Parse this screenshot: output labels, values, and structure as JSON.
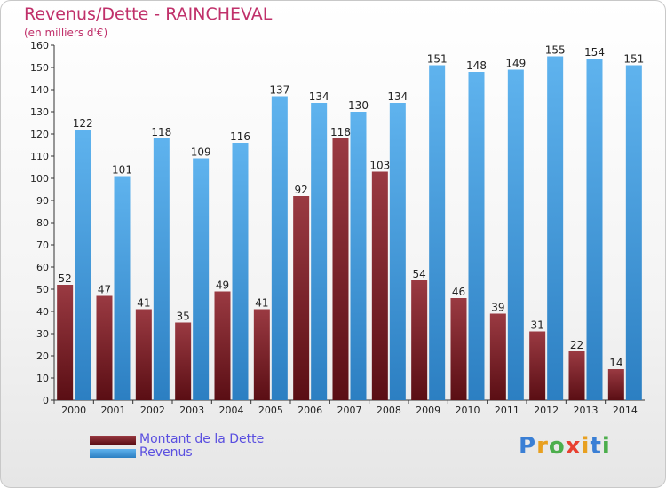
{
  "chart_data": {
    "type": "bar",
    "title": "Revenus/Dette - RAINCHEVAL",
    "subtitle": "(en milliers d'€)",
    "categories": [
      "2000",
      "2001",
      "2002",
      "2003",
      "2004",
      "2005",
      "2006",
      "2007",
      "2008",
      "2009",
      "2010",
      "2011",
      "2012",
      "2013",
      "2014"
    ],
    "series": [
      {
        "name": "Montant de la Dette",
        "values": [
          52,
          47,
          41,
          35,
          49,
          41,
          92,
          118,
          103,
          54,
          46,
          39,
          31,
          22,
          14
        ],
        "color": "#7a1e26"
      },
      {
        "name": "Revenus",
        "values": [
          122,
          101,
          118,
          109,
          116,
          137,
          134,
          130,
          134,
          151,
          148,
          149,
          155,
          154,
          151
        ],
        "color": "#4da3e0"
      }
    ],
    "ylim": [
      0,
      160
    ],
    "yticks": [
      0,
      10,
      20,
      30,
      40,
      50,
      60,
      70,
      80,
      90,
      100,
      110,
      120,
      130,
      140,
      150,
      160
    ],
    "grid": false,
    "legend_position": "bottom-left"
  },
  "logo": {
    "text": "Proxiti",
    "colors": [
      "#3a7fd5",
      "#e8a020",
      "#4cae4c",
      "#e84030",
      "#e8a020",
      "#3a7fd5",
      "#4cae4c"
    ]
  }
}
